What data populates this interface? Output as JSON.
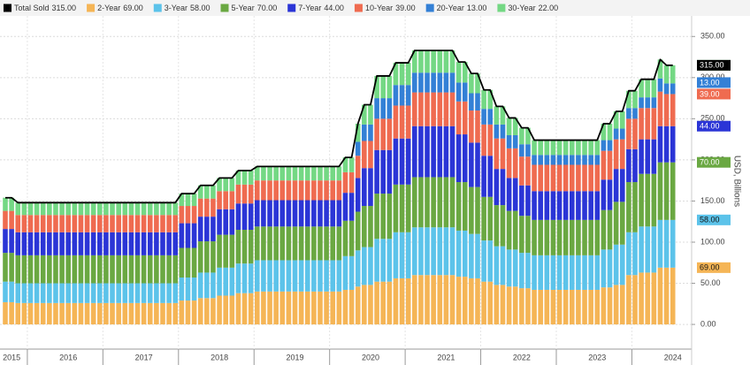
{
  "chart_data": {
    "type": "bar",
    "stacked": true,
    "y_axis_label": "USD, Billions",
    "ylim": [
      -30,
      375
    ],
    "yticks": [
      {
        "value": 0,
        "label": "0.00"
      },
      {
        "value": 50,
        "label": "50.00"
      },
      {
        "value": 100,
        "label": "100.00"
      },
      {
        "value": 150,
        "label": "150.00"
      },
      {
        "value": 200,
        "label": "200.00"
      },
      {
        "value": 250,
        "label": "250.00"
      },
      {
        "value": 300,
        "label": "300.00"
      },
      {
        "value": 350,
        "label": "350.00"
      }
    ],
    "grid": true,
    "categories": [
      null,
      "2015",
      null,
      null,
      null,
      null,
      null,
      null,
      null,
      null,
      "2016",
      null,
      null,
      null,
      null,
      null,
      null,
      null,
      null,
      null,
      null,
      null,
      "2017",
      null,
      null,
      null,
      null,
      null,
      null,
      null,
      null,
      null,
      null,
      null,
      "2018",
      null,
      null,
      null,
      null,
      null,
      null,
      null,
      null,
      null,
      null,
      null,
      "2019",
      null,
      null,
      null,
      null,
      null,
      null,
      null,
      null,
      null,
      null,
      null,
      "2020",
      null,
      null,
      null,
      null,
      null,
      null,
      null,
      null,
      null,
      null,
      null,
      "2021",
      null,
      null,
      null,
      null,
      null,
      null,
      null,
      null,
      null,
      null,
      null,
      "2022",
      null,
      null,
      null,
      null,
      null,
      null,
      null,
      null,
      null,
      null,
      null,
      "2023",
      null,
      null,
      null,
      null,
      null,
      null,
      null,
      null,
      null,
      null,
      null,
      "2024"
    ],
    "total": {
      "name": "Total Sold",
      "color": "#000000",
      "last_label": "315.00",
      "values": [
        154,
        154,
        148,
        148,
        148,
        148,
        148,
        148,
        148,
        148,
        148,
        148,
        148,
        148,
        148,
        148,
        148,
        148,
        148,
        148,
        148,
        148,
        148,
        148,
        148,
        148,
        148,
        148,
        159,
        159,
        159,
        169,
        169,
        169,
        178,
        178,
        178,
        187,
        187,
        187,
        192,
        192,
        192,
        192,
        192,
        192,
        192,
        192,
        192,
        192,
        192,
        192,
        192,
        192,
        203,
        203,
        244,
        267,
        267,
        302,
        302,
        302,
        318,
        318,
        318,
        333,
        333,
        333,
        333,
        333,
        333,
        333,
        319,
        319,
        305,
        305,
        285,
        285,
        265,
        265,
        251,
        251,
        239,
        239,
        224,
        224,
        224,
        224,
        224,
        224,
        224,
        224,
        224,
        224,
        224,
        244,
        244,
        259,
        259,
        284,
        284,
        298,
        298,
        298,
        322,
        315,
        315
      ]
    },
    "series": [
      {
        "name": "2-Year",
        "color": "#f5b556",
        "last_label": "69.00",
        "values": [
          27,
          27,
          26,
          26,
          26,
          26,
          26,
          26,
          26,
          26,
          26,
          26,
          26,
          26,
          26,
          26,
          26,
          26,
          26,
          26,
          26,
          26,
          26,
          26,
          26,
          26,
          26,
          26,
          29,
          29,
          29,
          32,
          32,
          32,
          35,
          35,
          35,
          38,
          38,
          38,
          40,
          40,
          40,
          40,
          40,
          40,
          40,
          40,
          40,
          40,
          40,
          40,
          40,
          40,
          42,
          42,
          46,
          48,
          48,
          52,
          52,
          52,
          56,
          56,
          56,
          60,
          60,
          60,
          60,
          60,
          60,
          60,
          58,
          58,
          56,
          56,
          52,
          52,
          48,
          48,
          46,
          46,
          44,
          44,
          42,
          42,
          42,
          42,
          42,
          42,
          42,
          42,
          42,
          42,
          42,
          45,
          45,
          48,
          48,
          60,
          60,
          63,
          63,
          63,
          69,
          69,
          69
        ]
      },
      {
        "name": "3-Year",
        "color": "#5cc3ea",
        "last_label": "58.00",
        "values": [
          25,
          25,
          24,
          24,
          24,
          24,
          24,
          24,
          24,
          24,
          24,
          24,
          24,
          24,
          24,
          24,
          24,
          24,
          24,
          24,
          24,
          24,
          24,
          24,
          24,
          24,
          24,
          24,
          28,
          28,
          28,
          31,
          31,
          31,
          34,
          34,
          34,
          36,
          36,
          36,
          38,
          38,
          38,
          38,
          38,
          38,
          38,
          38,
          38,
          38,
          38,
          38,
          38,
          38,
          41,
          41,
          44,
          46,
          46,
          52,
          52,
          52,
          56,
          56,
          56,
          58,
          58,
          58,
          58,
          58,
          58,
          58,
          56,
          56,
          54,
          54,
          50,
          50,
          47,
          47,
          45,
          45,
          43,
          43,
          42,
          42,
          42,
          42,
          42,
          42,
          42,
          42,
          42,
          42,
          42,
          46,
          46,
          49,
          49,
          52,
          52,
          56,
          56,
          56,
          58,
          58,
          58
        ]
      },
      {
        "name": "5-Year",
        "color": "#6aa842",
        "last_label": "70.00",
        "values": [
          35,
          35,
          34,
          34,
          34,
          34,
          34,
          34,
          34,
          34,
          34,
          34,
          34,
          34,
          34,
          34,
          34,
          34,
          34,
          34,
          34,
          34,
          34,
          34,
          34,
          34,
          34,
          34,
          36,
          36,
          36,
          38,
          38,
          38,
          40,
          40,
          40,
          41,
          41,
          41,
          41,
          41,
          41,
          41,
          41,
          41,
          41,
          41,
          41,
          41,
          41,
          41,
          41,
          41,
          43,
          43,
          47,
          50,
          50,
          55,
          55,
          55,
          58,
          58,
          58,
          61,
          61,
          61,
          61,
          61,
          61,
          61,
          59,
          59,
          57,
          57,
          53,
          53,
          50,
          50,
          47,
          47,
          45,
          45,
          43,
          43,
          43,
          43,
          43,
          43,
          43,
          43,
          43,
          43,
          43,
          48,
          48,
          52,
          52,
          61,
          61,
          64,
          64,
          64,
          70,
          70,
          70
        ]
      },
      {
        "name": "7-Year",
        "color": "#2b35d6",
        "last_label": "44.00",
        "values": [
          29,
          29,
          28,
          28,
          28,
          28,
          28,
          28,
          28,
          28,
          28,
          28,
          28,
          28,
          28,
          28,
          28,
          28,
          28,
          28,
          28,
          28,
          28,
          28,
          28,
          28,
          28,
          28,
          30,
          30,
          30,
          30,
          30,
          30,
          31,
          31,
          31,
          32,
          32,
          32,
          32,
          32,
          32,
          32,
          32,
          32,
          32,
          32,
          32,
          32,
          32,
          32,
          32,
          32,
          34,
          34,
          41,
          46,
          46,
          53,
          53,
          53,
          56,
          56,
          56,
          62,
          62,
          62,
          62,
          62,
          62,
          62,
          58,
          58,
          54,
          54,
          50,
          50,
          44,
          44,
          40,
          40,
          37,
          37,
          35,
          35,
          35,
          35,
          35,
          35,
          35,
          35,
          35,
          35,
          35,
          37,
          37,
          40,
          40,
          40,
          40,
          42,
          42,
          42,
          44,
          44,
          44
        ]
      },
      {
        "name": "10-Year",
        "color": "#ef6b50",
        "last_label": "39.00",
        "values": [
          22,
          22,
          21,
          21,
          21,
          21,
          21,
          21,
          21,
          21,
          21,
          21,
          21,
          21,
          21,
          21,
          21,
          21,
          21,
          21,
          21,
          21,
          21,
          21,
          21,
          21,
          21,
          21,
          21,
          21,
          21,
          22,
          22,
          22,
          22,
          22,
          22,
          23,
          23,
          23,
          24,
          24,
          24,
          24,
          24,
          24,
          24,
          24,
          24,
          24,
          24,
          24,
          24,
          24,
          25,
          25,
          27,
          33,
          33,
          38,
          38,
          38,
          40,
          40,
          40,
          41,
          41,
          41,
          41,
          41,
          41,
          41,
          40,
          40,
          39,
          39,
          38,
          38,
          37,
          37,
          36,
          36,
          35,
          35,
          32,
          32,
          32,
          32,
          32,
          32,
          32,
          32,
          32,
          32,
          32,
          35,
          35,
          36,
          36,
          37,
          37,
          38,
          38,
          38,
          42,
          39,
          39
        ]
      },
      {
        "name": "20-Year",
        "color": "#3380d6",
        "last_label": "13.00",
        "values": [
          0,
          0,
          0,
          0,
          0,
          0,
          0,
          0,
          0,
          0,
          0,
          0,
          0,
          0,
          0,
          0,
          0,
          0,
          0,
          0,
          0,
          0,
          0,
          0,
          0,
          0,
          0,
          0,
          0,
          0,
          0,
          0,
          0,
          0,
          0,
          0,
          0,
          0,
          0,
          0,
          0,
          0,
          0,
          0,
          0,
          0,
          0,
          0,
          0,
          0,
          0,
          0,
          0,
          0,
          0,
          0,
          17,
          20,
          20,
          25,
          25,
          25,
          25,
          25,
          25,
          24,
          24,
          24,
          24,
          24,
          24,
          24,
          23,
          23,
          21,
          21,
          19,
          19,
          17,
          17,
          16,
          16,
          15,
          15,
          12,
          12,
          12,
          12,
          12,
          12,
          12,
          12,
          12,
          12,
          12,
          13,
          13,
          13,
          13,
          13,
          13,
          13,
          13,
          13,
          16,
          13,
          13
        ]
      },
      {
        "name": "30-Year",
        "color": "#74d884",
        "last_label": "22.00",
        "values": [
          16,
          16,
          15,
          15,
          15,
          15,
          15,
          15,
          15,
          15,
          15,
          15,
          15,
          15,
          15,
          15,
          15,
          15,
          15,
          15,
          15,
          15,
          15,
          15,
          15,
          15,
          15,
          15,
          15,
          15,
          15,
          16,
          16,
          16,
          16,
          16,
          16,
          17,
          17,
          17,
          17,
          17,
          17,
          17,
          17,
          17,
          17,
          17,
          17,
          17,
          17,
          17,
          17,
          17,
          18,
          18,
          22,
          24,
          24,
          27,
          27,
          27,
          27,
          27,
          27,
          27,
          27,
          27,
          27,
          27,
          27,
          27,
          25,
          25,
          24,
          24,
          23,
          23,
          22,
          22,
          21,
          21,
          20,
          20,
          18,
          18,
          18,
          18,
          18,
          18,
          18,
          18,
          18,
          18,
          18,
          20,
          20,
          21,
          21,
          21,
          21,
          22,
          22,
          22,
          23,
          22,
          22
        ]
      }
    ]
  }
}
